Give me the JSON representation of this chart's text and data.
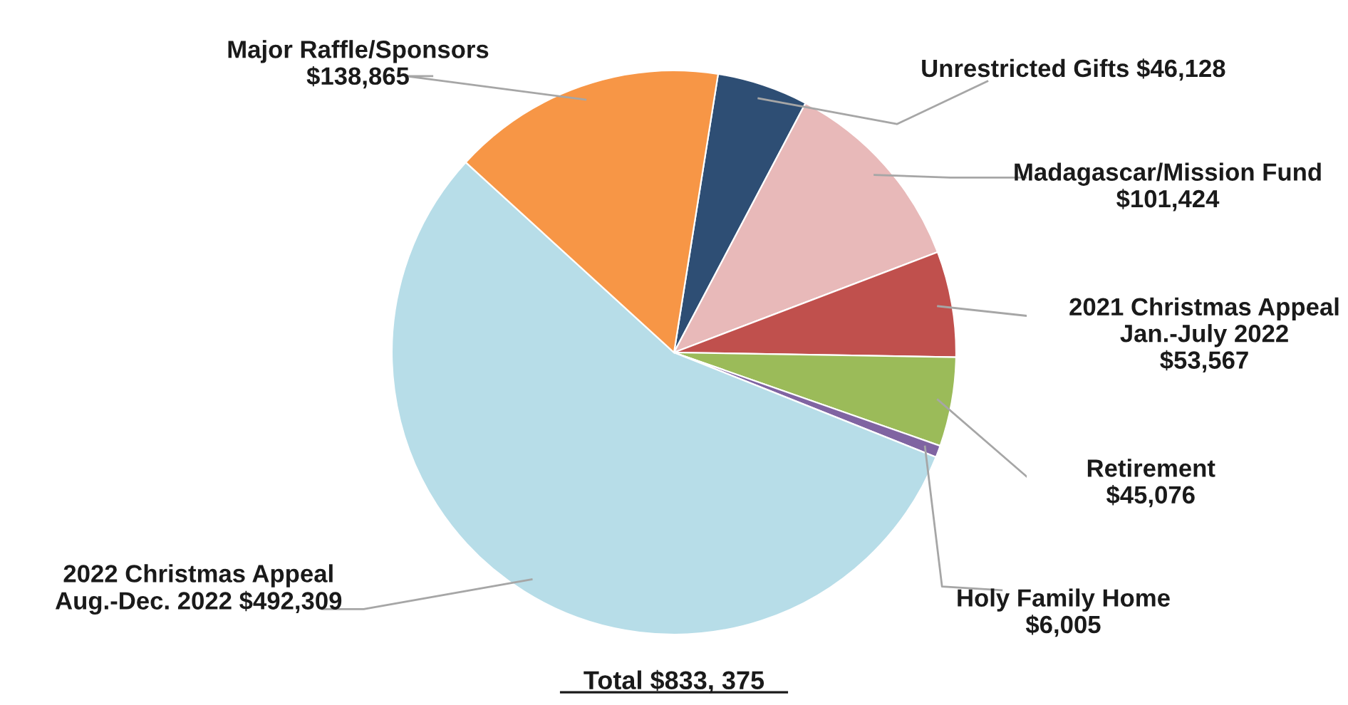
{
  "chart_data": {
    "type": "pie",
    "categories": [
      "Unrestricted Gifts",
      "Madagascar/Mission Fund",
      "2021 Christmas Appeal\nJan.-July 2022",
      "Retirement",
      "Holy Family Home",
      "2022 Christmas Appeal\nAug.-Dec. 2022",
      "Major Raffle/Sponsors"
    ],
    "values": [
      46128,
      101424,
      53567,
      45076,
      6005,
      492309,
      138865
    ],
    "value_labels": [
      "$46,128",
      "$101,424",
      "$53,567",
      "$45,076",
      "$6,005",
      "$492,309",
      "$138,865"
    ],
    "colors": [
      "#2e4e74",
      "#e8b9b9",
      "#c0504d",
      "#9bbb59",
      "#8064a2",
      "#b7dde8",
      "#f79646"
    ],
    "annotations": [
      "Total $833, 375"
    ],
    "legend": false
  }
}
